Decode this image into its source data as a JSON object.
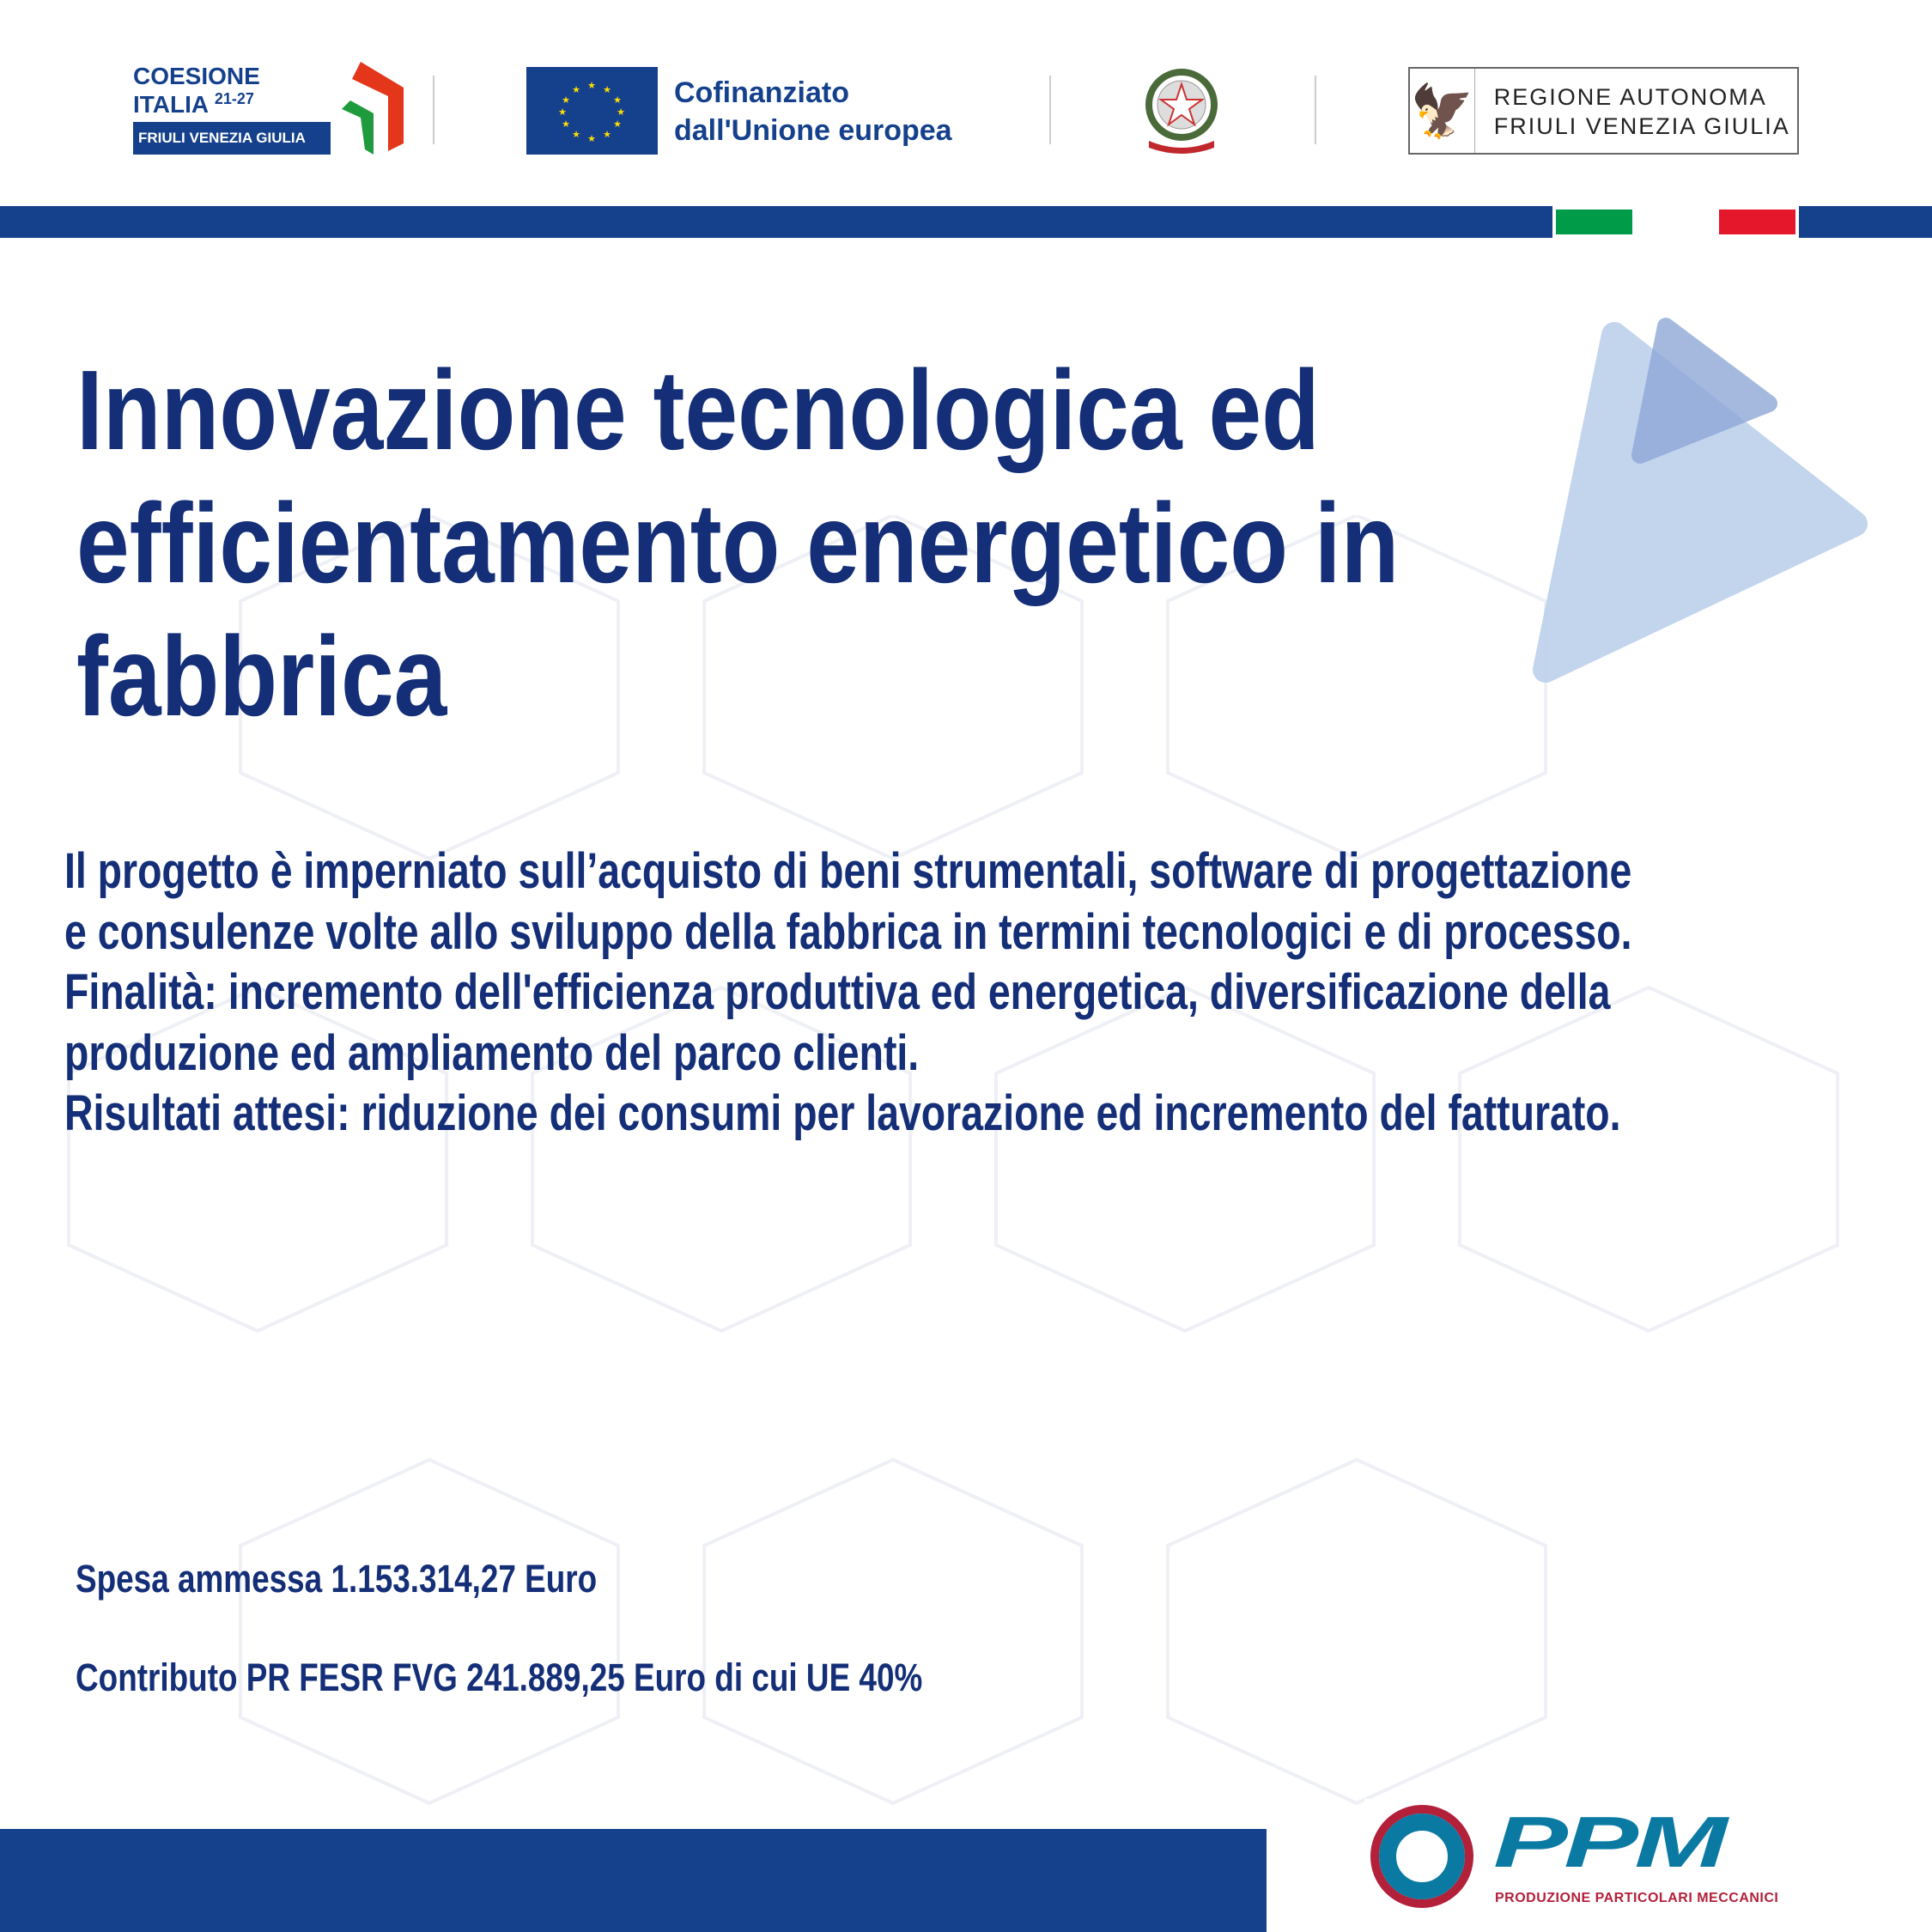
{
  "header": {
    "coesione": {
      "line1": "COESIONE",
      "line2": "ITALIA",
      "years": "21-27",
      "region": "FRIULI VENEZIA GIULIA"
    },
    "eu": {
      "line1": "Cofinanziato",
      "line2": "dall'Unione europea"
    },
    "emblem_label": "REPUBBLICA ITALIANA",
    "regione": {
      "line1": "REGIONE AUTONOMA",
      "line2": "FRIULI VENEZIA GIULIA"
    },
    "flag_colors": [
      "#009b48",
      "#ffffff",
      "#e4172b"
    ],
    "band_color": "#15418c"
  },
  "title": {
    "line1": "Innovazione tecnologica ed",
    "line2": "efficientamento energetico in",
    "line3": "fabbrica"
  },
  "body": [
    "Il progetto è imperniato sull’acquisto di beni strumentali, software di progettazione",
    "e consulenze volte allo sviluppo della fabbrica in termini tecnologici e di processo.",
    "Finalità: incremento dell'efficienza produttiva ed energetica, diversificazione della",
    "produzione ed ampliamento del parco clienti.",
    "Risultati attesi: riduzione dei consumi per lavorazione ed incremento del fatturato."
  ],
  "funding": {
    "spesa": "Spesa ammessa 1.153.314,27 Euro",
    "contributo": "Contributo PR FESR FVG 241.889,25 Euro di cui UE 40%"
  },
  "company": {
    "name": "PPM",
    "subtitle": "PRODUZIONE PARTICOLARI MECCANICI"
  }
}
